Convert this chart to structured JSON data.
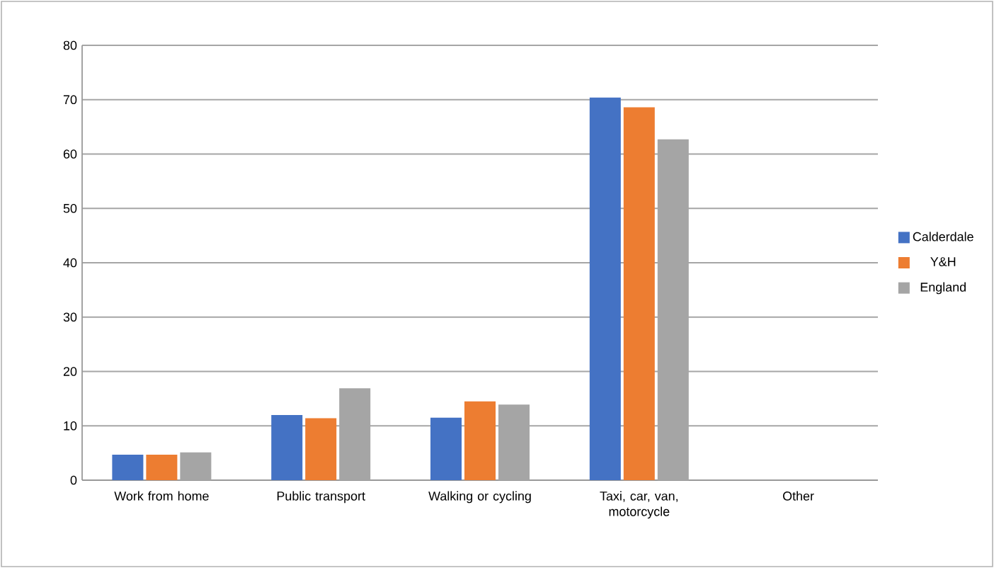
{
  "chart_data": {
    "type": "bar",
    "categories": [
      "Work from home",
      "Public transport",
      "Walking or cycling",
      "Taxi, car, van, motorcycle",
      "Other"
    ],
    "series": [
      {
        "name": "Calderdale",
        "color": "#4472c4",
        "values": [
          4.7,
          12.0,
          11.5,
          70.4,
          0
        ]
      },
      {
        "name": "Y&H",
        "color": "#ed7d31",
        "values": [
          4.7,
          11.4,
          14.5,
          68.6,
          0
        ]
      },
      {
        "name": "England",
        "color": "#a5a5a5",
        "values": [
          5.1,
          16.9,
          13.9,
          62.7,
          0
        ]
      }
    ],
    "ylim": [
      0,
      80
    ],
    "yticks": [
      0,
      10,
      20,
      30,
      40,
      50,
      60,
      70,
      80
    ],
    "grid": "y",
    "legend": "right"
  }
}
